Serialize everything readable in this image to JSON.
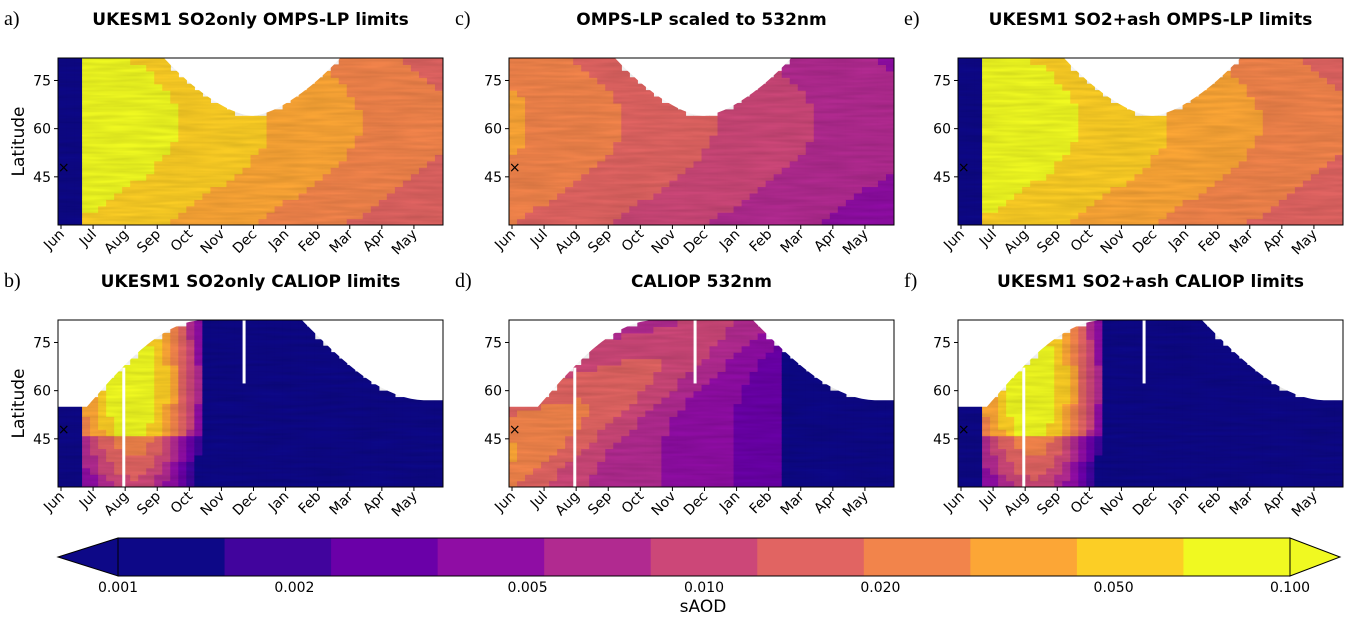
{
  "chart_data": [
    {
      "panel": "a)",
      "title": "UKESM1 SO2only OMPS-LP limits",
      "type": "heatmap",
      "ylabel": "Latitude",
      "x_ticks": [
        "Jun",
        "Jul",
        "Aug",
        "Sep",
        "Oct",
        "Nov",
        "Dec",
        "Jan",
        "Feb",
        "Mar",
        "Apr",
        "May"
      ],
      "y_ticks": [
        45,
        60,
        75
      ],
      "ylim": [
        30,
        82
      ],
      "coverage": "omps",
      "peak_saod": 0.1,
      "fill_start": "Jul",
      "marker": "×",
      "gap_month": ""
    },
    {
      "panel": "b)",
      "title": "UKESM1 SO2only CALIOP limits",
      "type": "heatmap",
      "ylabel": "Latitude",
      "x_ticks": [
        "Jun",
        "Jul",
        "Aug",
        "Sep",
        "Oct",
        "Nov",
        "Dec",
        "Jan",
        "Feb",
        "Mar",
        "Apr",
        "May"
      ],
      "y_ticks": [
        45,
        60,
        75
      ],
      "ylim": [
        30,
        82
      ],
      "coverage": "caliop",
      "peak_saod": 0.1,
      "fill_start": "Jul",
      "marker": "×",
      "gap_month": "Aug"
    },
    {
      "panel": "c)",
      "title": "OMPS-LP scaled to 532nm",
      "type": "heatmap",
      "ylabel": "",
      "x_ticks": [
        "Jun",
        "Jul",
        "Aug",
        "Sep",
        "Oct",
        "Nov",
        "Dec",
        "Jan",
        "Feb",
        "Mar",
        "Apr",
        "May"
      ],
      "y_ticks": [
        45,
        60,
        75
      ],
      "ylim": [
        30,
        82
      ],
      "coverage": "omps",
      "peak_saod": 0.03,
      "fill_start": "Jun",
      "marker": "×",
      "gap_month": ""
    },
    {
      "panel": "d)",
      "title": "CALIOP 532nm",
      "type": "heatmap",
      "ylabel": "",
      "x_ticks": [
        "Jun",
        "Jul",
        "Aug",
        "Sep",
        "Oct",
        "Nov",
        "Dec",
        "Jan",
        "Feb",
        "Mar",
        "Apr",
        "May"
      ],
      "y_ticks": [
        45,
        60,
        75
      ],
      "ylim": [
        30,
        82
      ],
      "coverage": "caliop",
      "peak_saod": 0.03,
      "fill_start": "Jun",
      "marker": "×",
      "gap_month": "Aug"
    },
    {
      "panel": "e)",
      "title": "UKESM1 SO2+ash OMPS-LP limits",
      "type": "heatmap",
      "ylabel": "",
      "x_ticks": [
        "Jun",
        "Jul",
        "Aug",
        "Sep",
        "Oct",
        "Nov",
        "Dec",
        "Jan",
        "Feb",
        "Mar",
        "Apr",
        "May"
      ],
      "y_ticks": [
        45,
        60,
        75
      ],
      "ylim": [
        30,
        82
      ],
      "coverage": "omps",
      "peak_saod": 0.1,
      "fill_start": "Jul",
      "marker": "×",
      "gap_month": ""
    },
    {
      "panel": "f)",
      "title": "UKESM1 SO2+ash CALIOP limits",
      "type": "heatmap",
      "ylabel": "",
      "x_ticks": [
        "Jun",
        "Jul",
        "Aug",
        "Sep",
        "Oct",
        "Nov",
        "Dec",
        "Jan",
        "Feb",
        "Mar",
        "Apr",
        "May"
      ],
      "y_ticks": [
        45,
        60,
        75
      ],
      "ylim": [
        30,
        82
      ],
      "coverage": "caliop",
      "peak_saod": 0.1,
      "fill_start": "Jul",
      "marker": "×",
      "gap_month": "Aug"
    }
  ],
  "colorbar": {
    "label": "sAOD",
    "tick_labels": [
      "0.001",
      "0.002",
      "0.005",
      "0.010",
      "0.020",
      "0.050",
      "0.100"
    ],
    "tick_values": [
      0.001,
      0.002,
      0.005,
      0.01,
      0.02,
      0.05,
      0.1
    ],
    "colors": [
      "#0d0887",
      "#41049d",
      "#6a00a8",
      "#8f0da4",
      "#b12a90",
      "#cc4778",
      "#e16462",
      "#f2844b",
      "#fca636",
      "#fcce25",
      "#f0f921"
    ]
  }
}
